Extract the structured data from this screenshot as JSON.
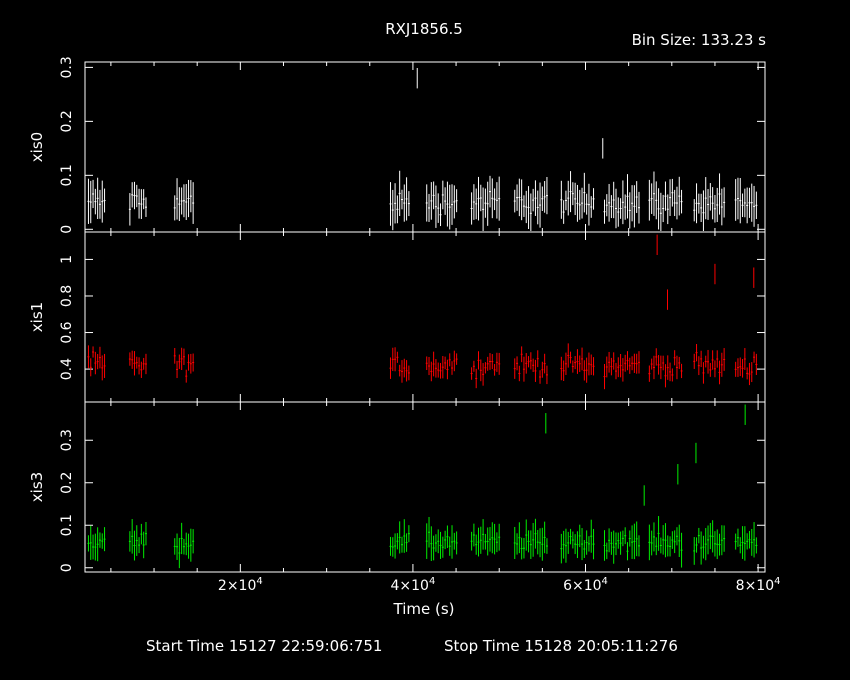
{
  "chart_data": {
    "type": "scatter",
    "title": "RXJ1856.5",
    "bin_size_label": "Bin Size:  133.23 s",
    "xlabel": "Time (s)",
    "xlim": [
      2000,
      80800
    ],
    "x_ticks": [
      {
        "value": 20000,
        "mantissa": "2×10",
        "exp": "4"
      },
      {
        "value": 40000,
        "mantissa": "4×10",
        "exp": "4"
      },
      {
        "value": 60000,
        "mantissa": "6×10",
        "exp": "4"
      },
      {
        "value": 80000,
        "mantissa": "8×10",
        "exp": "4"
      }
    ],
    "footer": {
      "start": "Start Time 15127 22:59:06:751",
      "stop": "Stop Time 15128 20:05:11:276"
    },
    "segments": [
      [
        2400,
        4500
      ],
      [
        7200,
        9200
      ],
      [
        12400,
        14600
      ],
      [
        37400,
        39700
      ],
      [
        41600,
        45100
      ],
      [
        46800,
        50000
      ],
      [
        51800,
        55600
      ],
      [
        57200,
        61000
      ],
      [
        62200,
        66300
      ],
      [
        67400,
        71200
      ],
      [
        72600,
        76300
      ],
      [
        77400,
        80000
      ]
    ],
    "panels": [
      {
        "ylabel": "xis0",
        "color": "#ffffff",
        "ylim": [
          -0.005,
          0.31
        ],
        "yticks": [
          0,
          0.1,
          0.2,
          0.3
        ],
        "ytick_labels": [
          "0",
          "0.1",
          "0.2",
          "0.3"
        ],
        "baseline": 0.05,
        "noise": 0.03,
        "err": 0.03,
        "outliers": [
          [
            40500,
            0.28
          ],
          [
            62000,
            0.15
          ]
        ]
      },
      {
        "ylabel": "xis1",
        "color": "#ff0000",
        "ylim": [
          0.22,
          1.15
        ],
        "yticks": [
          0.4,
          0.6,
          0.8,
          1.0
        ],
        "ytick_labels": [
          "0.4",
          "0.6",
          "0.8",
          "1"
        ],
        "baseline": 0.42,
        "noise": 0.08,
        "err": 0.05,
        "outliers": [
          [
            68300,
            1.08
          ],
          [
            75000,
            0.92
          ],
          [
            79500,
            0.9
          ],
          [
            69500,
            0.78
          ]
        ]
      },
      {
        "ylabel": "xis3",
        "color": "#00ee00",
        "ylim": [
          -0.01,
          0.39
        ],
        "yticks": [
          0,
          0.1,
          0.2,
          0.3
        ],
        "ytick_labels": [
          "0",
          "0.1",
          "0.2",
          "0.3"
        ],
        "baseline": 0.06,
        "noise": 0.03,
        "err": 0.03,
        "outliers": [
          [
            55400,
            0.34
          ],
          [
            78500,
            0.36
          ],
          [
            72800,
            0.27
          ],
          [
            70700,
            0.22
          ],
          [
            66800,
            0.17
          ]
        ]
      }
    ]
  }
}
